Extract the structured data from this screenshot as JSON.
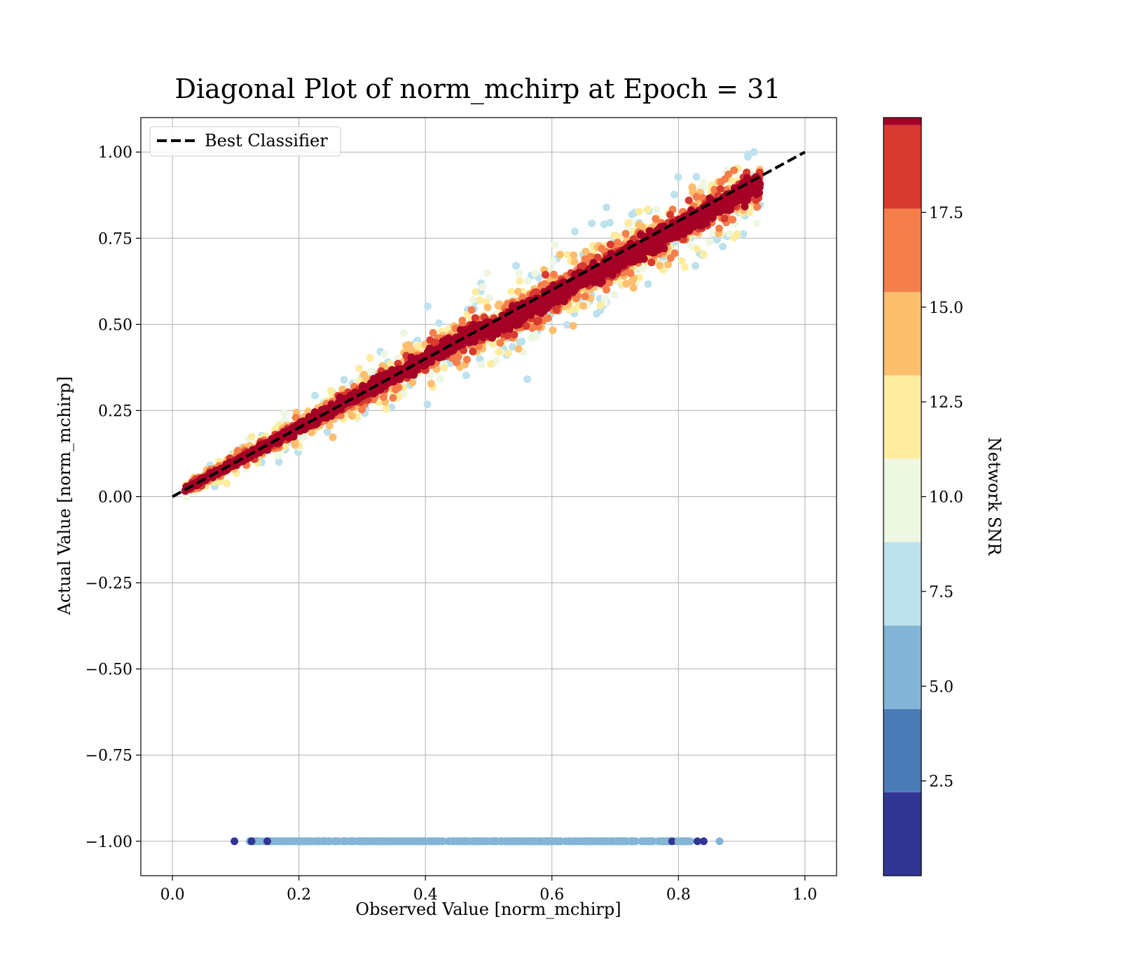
{
  "chart_data": {
    "type": "scatter",
    "title": "Diagonal Plot of norm_mchirp at Epoch = 31",
    "xlabel": "Observed Value [norm_mchirp]",
    "ylabel": "Actual Value [norm_mchirp]",
    "xlim": [
      -0.05,
      1.05
    ],
    "ylim": [
      -1.1,
      1.1
    ],
    "xticks": [
      0.0,
      0.2,
      0.4,
      0.6,
      0.8,
      1.0
    ],
    "xtick_labels": [
      "0.0",
      "0.2",
      "0.4",
      "0.6",
      "0.8",
      "1.0"
    ],
    "yticks": [
      1.0,
      0.75,
      0.5,
      0.25,
      0.0,
      -0.25,
      -0.5,
      -0.75,
      -1.0
    ],
    "ytick_labels": [
      "1.00",
      "0.75",
      "0.50",
      "0.25",
      "0.00",
      "−0.25",
      "−0.50",
      "−0.75",
      "−1.00"
    ],
    "grid": true,
    "legend": {
      "placement": "upper-left",
      "entries": [
        {
          "label": "Best Classifier",
          "style": "dashed",
          "color": "#000000"
        }
      ]
    },
    "reference_line": {
      "name": "Best Classifier",
      "x": [
        0.0,
        1.0
      ],
      "y": [
        0.0,
        1.0
      ],
      "style": "dashed",
      "color": "#000000"
    },
    "colorbar": {
      "label": "Network SNR",
      "range": [
        0.0,
        20.0
      ],
      "boundaries": [
        0.0,
        2.2,
        4.4,
        6.6,
        8.8,
        11.0,
        13.2,
        15.4,
        17.6,
        19.8
      ],
      "ticks": [
        2.5,
        5.0,
        7.5,
        10.0,
        12.5,
        15.0,
        17.5
      ],
      "tick_labels": [
        "2.5",
        "5.0",
        "7.5",
        "10.0",
        "12.5",
        "15.0",
        "17.5"
      ],
      "colors": [
        "#313695",
        "#4a7bb7",
        "#82b5d6",
        "#bde2ed",
        "#eef7e2",
        "#feeda1",
        "#fdbe6e",
        "#f57e4b",
        "#d73a2e",
        "#a50026"
      ]
    },
    "clusters": [
      {
        "description": "diagonal band",
        "snr_band_colors": "all",
        "x_range": [
          0.02,
          0.93
        ],
        "y_follows": "x"
      },
      {
        "description": "non-detections at -1",
        "y": -1.0,
        "x_range": [
          0.1,
          0.865
        ],
        "color": "#82b5d6"
      }
    ]
  }
}
